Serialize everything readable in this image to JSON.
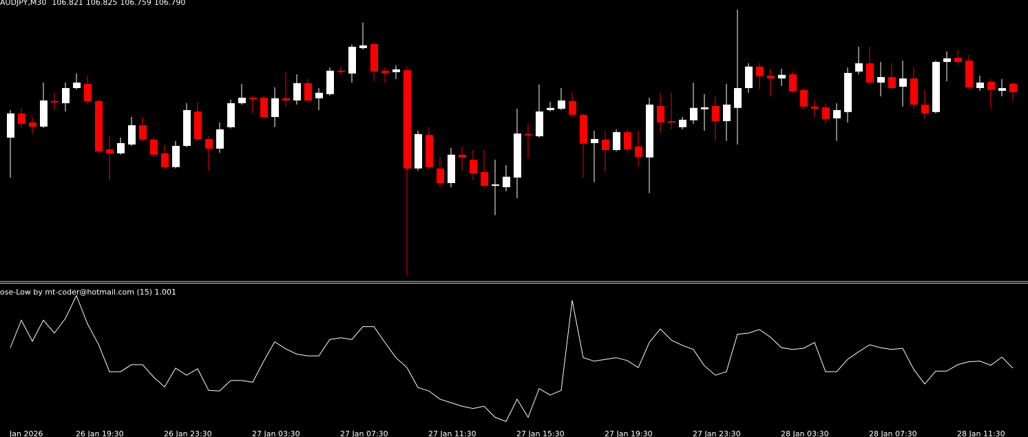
{
  "header": {
    "symbol": "AUDJPY,M30",
    "ohlc": [
      "106.821",
      "106.825",
      "106.759",
      "106.790"
    ]
  },
  "chart_data": [
    {
      "type": "candlestick",
      "up_color": "#ffffff",
      "down_color": "#ff0000",
      "ylim": [
        106.105,
        107.125
      ],
      "categories": [
        "Jan 2026",
        null,
        null,
        null,
        null,
        null,
        "26 Jan 19:30",
        null,
        null,
        null,
        null,
        null,
        null,
        null,
        "26 Jan 23:30",
        null,
        null,
        null,
        null,
        null,
        null,
        null,
        "27 Jan 03:30",
        null,
        null,
        null,
        null,
        null,
        null,
        null,
        "27 Jan 07:30",
        null,
        null,
        null,
        null,
        null,
        null,
        null,
        "27 Jan 11:30",
        null,
        null,
        null,
        null,
        null,
        null,
        null,
        "27 Jan 15:30",
        null,
        null,
        null,
        null,
        null,
        null,
        null,
        "27 Jan 19:30",
        null,
        null,
        null,
        null,
        null,
        null,
        null,
        "27 Jan 23:30",
        null,
        null,
        null,
        null,
        null,
        null,
        null,
        "28 Jan 03:30",
        null,
        null,
        null,
        null,
        null,
        null,
        null,
        "28 Jan 07:30",
        null,
        null,
        null,
        null,
        null,
        null,
        null,
        "28 Jan 11:30",
        null,
        null,
        null,
        null,
        null
      ],
      "open": [
        106.625,
        106.713,
        106.68,
        106.665,
        106.758,
        106.75,
        106.805,
        106.82,
        106.758,
        106.583,
        106.568,
        106.6,
        106.67,
        106.618,
        106.568,
        106.518,
        106.595,
        106.72,
        106.62,
        106.585,
        106.663,
        106.75,
        106.77,
        106.77,
        106.7,
        106.768,
        106.76,
        106.823,
        106.768,
        106.783,
        106.868,
        106.858,
        106.95,
        106.965,
        106.868,
        106.863,
        106.87,
        106.513,
        106.635,
        106.513,
        106.46,
        106.563,
        106.545,
        106.5,
        106.45,
        106.445,
        106.48,
        106.638,
        106.63,
        106.725,
        106.73,
        106.758,
        106.708,
        106.605,
        106.618,
        106.58,
        106.645,
        106.593,
        106.553,
        106.74,
        106.685,
        106.663,
        106.688,
        106.728,
        106.74,
        106.685,
        106.733,
        106.805,
        106.883,
        106.85,
        106.84,
        106.855,
        106.798,
        106.738,
        106.735,
        106.695,
        106.718,
        106.865,
        106.895,
        106.825,
        106.845,
        106.81,
        106.84,
        106.745,
        106.718,
        106.9,
        106.915,
        106.905,
        106.805,
        106.828,
        106.795,
        106.821
      ],
      "high": [
        106.725,
        106.733,
        106.7,
        106.825,
        106.788,
        106.825,
        106.858,
        106.85,
        106.763,
        106.63,
        106.625,
        106.7,
        106.7,
        106.625,
        106.6,
        106.613,
        106.75,
        106.755,
        106.63,
        106.68,
        106.763,
        106.82,
        106.775,
        106.775,
        106.808,
        106.863,
        106.855,
        106.838,
        106.805,
        106.88,
        106.883,
        106.963,
        107.043,
        106.97,
        106.88,
        106.888,
        106.883,
        106.65,
        106.663,
        106.555,
        106.588,
        106.593,
        106.58,
        106.58,
        106.545,
        106.525,
        106.73,
        106.675,
        106.818,
        106.755,
        106.805,
        106.788,
        106.713,
        106.65,
        106.65,
        106.655,
        106.655,
        106.65,
        106.77,
        106.788,
        106.788,
        106.7,
        106.825,
        106.783,
        106.775,
        106.82,
        107.09,
        106.895,
        106.895,
        106.875,
        106.875,
        106.863,
        106.805,
        106.763,
        106.75,
        106.75,
        106.88,
        106.955,
        106.955,
        106.9,
        106.895,
        106.905,
        106.88,
        106.8,
        106.905,
        106.938,
        106.945,
        106.925,
        106.85,
        106.838,
        106.838,
        106.825
      ],
      "low": [
        106.48,
        106.663,
        106.638,
        106.66,
        106.725,
        106.72,
        106.8,
        106.745,
        106.57,
        106.47,
        106.563,
        106.595,
        106.613,
        106.555,
        106.513,
        106.513,
        106.59,
        106.613,
        106.505,
        106.57,
        106.658,
        106.745,
        106.713,
        106.695,
        106.663,
        106.738,
        106.745,
        106.75,
        106.725,
        106.778,
        106.855,
        106.825,
        106.945,
        106.83,
        106.825,
        106.838,
        106.125,
        106.505,
        106.513,
        106.445,
        106.445,
        106.505,
        106.47,
        106.445,
        106.343,
        106.43,
        106.405,
        106.55,
        106.625,
        106.72,
        106.725,
        106.7,
        106.48,
        106.463,
        106.5,
        106.575,
        106.575,
        106.52,
        106.423,
        106.643,
        106.655,
        106.655,
        106.675,
        106.65,
        106.613,
        106.613,
        106.6,
        106.788,
        106.8,
        106.775,
        106.813,
        106.788,
        106.725,
        106.7,
        106.675,
        106.613,
        106.68,
        106.855,
        106.82,
        106.775,
        106.8,
        106.738,
        106.73,
        106.695,
        106.713,
        106.83,
        106.888,
        106.8,
        106.795,
        106.73,
        106.775,
        106.759
      ],
      "close": [
        106.713,
        106.675,
        106.665,
        106.76,
        106.753,
        106.805,
        106.825,
        106.758,
        106.575,
        106.568,
        106.605,
        106.67,
        106.618,
        106.563,
        106.518,
        106.595,
        106.725,
        106.62,
        106.585,
        106.655,
        106.75,
        106.77,
        106.765,
        106.7,
        106.768,
        106.76,
        106.823,
        106.76,
        106.788,
        106.868,
        106.863,
        106.955,
        106.96,
        106.865,
        106.86,
        106.873,
        106.513,
        106.638,
        106.518,
        106.46,
        106.563,
        106.553,
        106.495,
        106.45,
        106.455,
        106.483,
        106.64,
        106.633,
        106.72,
        106.733,
        106.76,
        106.708,
        106.603,
        106.62,
        106.58,
        106.645,
        106.583,
        106.555,
        106.745,
        106.68,
        106.68,
        106.69,
        106.733,
        106.735,
        106.685,
        106.745,
        106.805,
        106.883,
        106.848,
        106.84,
        106.853,
        106.793,
        106.738,
        106.73,
        106.693,
        106.725,
        106.86,
        106.895,
        106.825,
        106.845,
        106.805,
        106.84,
        106.745,
        106.713,
        106.9,
        106.913,
        106.9,
        106.808,
        106.825,
        106.798,
        106.805,
        106.79
      ]
    },
    {
      "type": "line",
      "title": "ose-Low by mt-coder@hotmail.com (15) 1.001",
      "color": "#ffffff",
      "ylim": [
        0,
        2.41
      ],
      "values": [
        1.35,
        1.82,
        1.46,
        1.82,
        1.6,
        1.85,
        2.24,
        1.76,
        1.41,
        0.94,
        0.94,
        1.06,
        1.06,
        0.85,
        0.68,
        1.0,
        0.88,
        0.99,
        0.62,
        0.61,
        0.79,
        0.79,
        0.76,
        1.12,
        1.45,
        1.33,
        1.24,
        1.21,
        1.21,
        1.49,
        1.52,
        1.49,
        1.71,
        1.71,
        1.44,
        1.18,
        1.01,
        0.67,
        0.61,
        0.47,
        0.41,
        0.35,
        0.31,
        0.35,
        0.16,
        0.09,
        0.47,
        0.16,
        0.65,
        0.54,
        0.62,
        2.16,
        1.18,
        1.12,
        1.15,
        1.18,
        1.13,
        1.01,
        1.44,
        1.67,
        1.48,
        1.39,
        1.32,
        1.04,
        0.88,
        0.94,
        1.58,
        1.6,
        1.66,
        1.53,
        1.35,
        1.32,
        1.34,
        1.44,
        0.94,
        0.94,
        1.15,
        1.28,
        1.4,
        1.35,
        1.32,
        1.34,
        0.98,
        0.73,
        0.95,
        0.95,
        1.06,
        1.11,
        1.12,
        1.05,
        1.19,
        1.001
      ]
    }
  ]
}
